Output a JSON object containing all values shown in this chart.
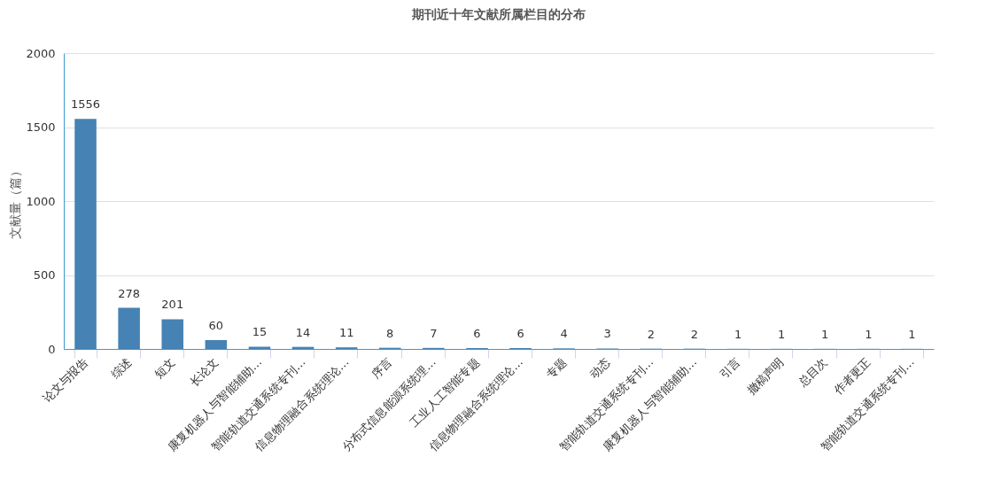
{
  "chart_data": {
    "type": "bar",
    "title": "期刊近十年文献所属栏目的分布",
    "ylabel": "文献量（篇）",
    "categories": [
      "论文与报告",
      "综述",
      "短文",
      "长论文",
      "康复机器人与智能辅助…",
      "智能轨道交通系统专刊…",
      "信息物理融合系统理论…",
      "序言",
      "分布式信息能源系统理…",
      "工业人工智能专题",
      "信息物理融合系统理论…",
      "专题",
      "动态",
      "智能轨道交通系统专刊…",
      "康复机器人与智能辅助…",
      "引言",
      "撤稿声明",
      "总目次",
      "作者更正",
      "智能轨道交通系统专刊…"
    ],
    "values": [
      1556,
      278,
      201,
      60,
      15,
      14,
      11,
      8,
      7,
      6,
      6,
      4,
      3,
      2,
      2,
      1,
      1,
      1,
      1,
      1
    ],
    "color": "#4682b4",
    "ylim": [
      0,
      2000
    ],
    "yticks": [
      0,
      500,
      1000,
      1500,
      2000
    ],
    "grid": "y",
    "data_labels": true
  }
}
